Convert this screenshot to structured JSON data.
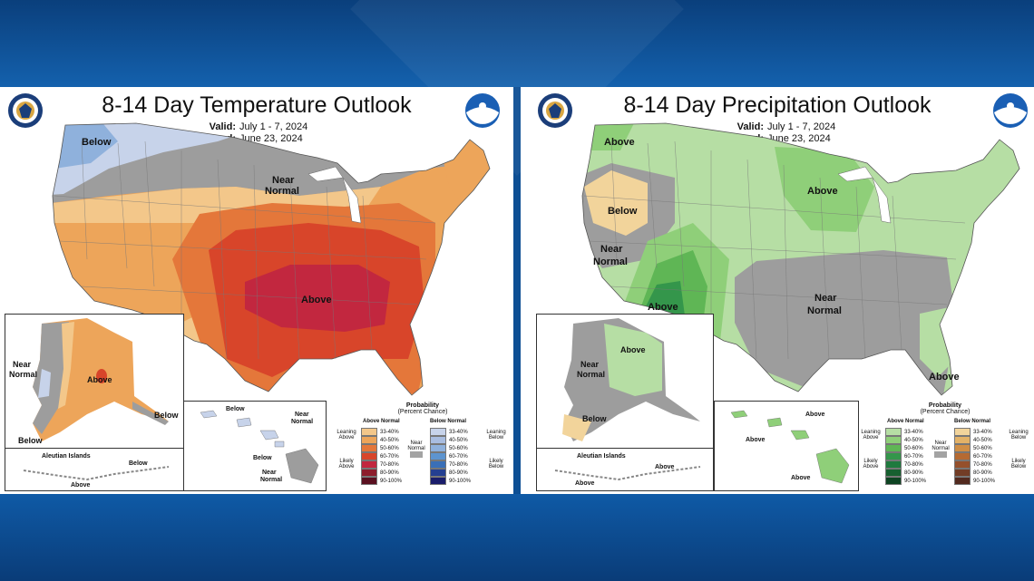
{
  "temperature": {
    "title": "8-14 Day Temperature Outlook",
    "valid_label": "Valid:",
    "valid": "July 1 - 7, 2024",
    "issued_label": "Issued:",
    "issued": "June 23, 2024",
    "labels": {
      "below_nw": "Below",
      "near_normal_line1": "Near",
      "near_normal_line2": "Normal",
      "above_center": "Above",
      "ak_near1": "Near",
      "ak_near2": "Normal",
      "ak_above": "Above",
      "ak_below_se": "Below",
      "ak_below_sw": "Below",
      "aleutian": "Aleutian Islands",
      "aleutian_below": "Below",
      "aleutian_above": "Above",
      "hi_below1": "Below",
      "hi_below2": "Below",
      "hi_near1": "Near",
      "hi_near2": "Normal",
      "hi_near3": "Near",
      "hi_near4": "Normal"
    },
    "legend": {
      "title1": "Probability",
      "title2": "(Percent Chance)",
      "above_head": "Above Normal",
      "below_head": "Below Normal",
      "leaning_above1": "Leaning",
      "leaning_above2": "Above",
      "likely_above1": "Likely",
      "likely_above2": "Above",
      "near1": "Near",
      "near2": "Normal",
      "leaning_below1": "Leaning",
      "leaning_below2": "Below",
      "likely_below1": "Likely",
      "likely_below2": "Below",
      "bins": [
        "33-40%",
        "40-50%",
        "50-60%",
        "60-70%",
        "70-80%",
        "80-90%",
        "90-100%"
      ],
      "above_colors": [
        "#f3c78a",
        "#eda55a",
        "#e4773a",
        "#d8452a",
        "#c2273f",
        "#8d1d2c",
        "#5a1020"
      ],
      "below_colors": [
        "#c7d3ea",
        "#a9bde0",
        "#8fb1dc",
        "#5d94cf",
        "#3a6fb7",
        "#243f91",
        "#1a1d6b"
      ],
      "near_color": "#a3a3a3"
    }
  },
  "precipitation": {
    "title": "8-14 Day Precipitation Outlook",
    "valid_label": "Valid:",
    "valid": "July 1 - 7, 2024",
    "issued_label": "Issued:",
    "issued": "June 23, 2024",
    "labels": {
      "above_nw": "Above",
      "below_west": "Below",
      "near_w1": "Near",
      "near_w2": "Normal",
      "above_sw": "Above",
      "above_mw": "Above",
      "near_s1": "Near",
      "near_s2": "Normal",
      "above_fl": "Above",
      "ak_above": "Above",
      "ak_near1": "Near",
      "ak_near2": "Normal",
      "ak_below": "Below",
      "aleutian": "Aleutian Islands",
      "aleutian_above1": "Above",
      "aleutian_above2": "Above",
      "hi_above1": "Above",
      "hi_above2": "Above",
      "hi_above3": "Above"
    },
    "legend": {
      "title1": "Probability",
      "title2": "(Percent Chance)",
      "above_head": "Above Normal",
      "below_head": "Below Normal",
      "leaning_above1": "Leaning",
      "leaning_above2": "Above",
      "likely_above1": "Likely",
      "likely_above2": "Above",
      "near1": "Near",
      "near2": "Normal",
      "leaning_below1": "Leaning",
      "leaning_below2": "Below",
      "likely_below1": "Likely",
      "likely_below2": "Below",
      "bins": [
        "33-40%",
        "40-50%",
        "50-60%",
        "60-70%",
        "70-80%",
        "80-90%",
        "90-100%"
      ],
      "above_colors": [
        "#b6dea4",
        "#8fcf79",
        "#5fb655",
        "#34964b",
        "#1f7a3e",
        "#176030",
        "#0e4422"
      ],
      "below_colors": [
        "#f2d49b",
        "#e3b267",
        "#d08e45",
        "#b56a32",
        "#95502c",
        "#723d26",
        "#522a1f"
      ],
      "near_color": "#a3a3a3"
    }
  },
  "colors": {
    "near_normal": "#9d9d9d",
    "ocean": "#ffffff"
  }
}
